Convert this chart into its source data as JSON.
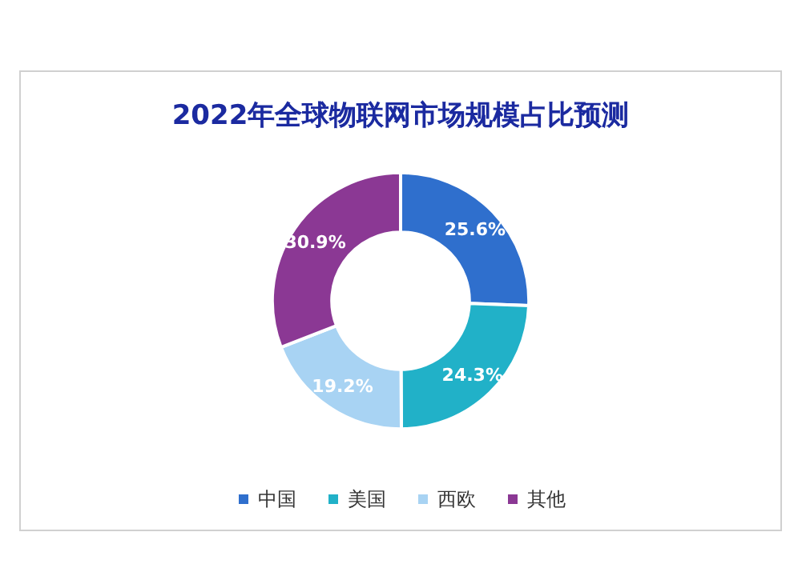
{
  "chart_data": {
    "type": "donut",
    "title": "2022年全球物联网市场规模占比预测",
    "categories": [
      "中国",
      "美国",
      "西欧",
      "其他"
    ],
    "values": [
      25.6,
      24.3,
      19.2,
      30.9
    ],
    "colors": [
      "#2f6fcd",
      "#21b1c8",
      "#a8d3f3",
      "#8b3894"
    ],
    "value_labels": [
      "25.6%",
      "24.3%",
      "19.2%",
      "30.9%"
    ],
    "legend": "bottom"
  }
}
